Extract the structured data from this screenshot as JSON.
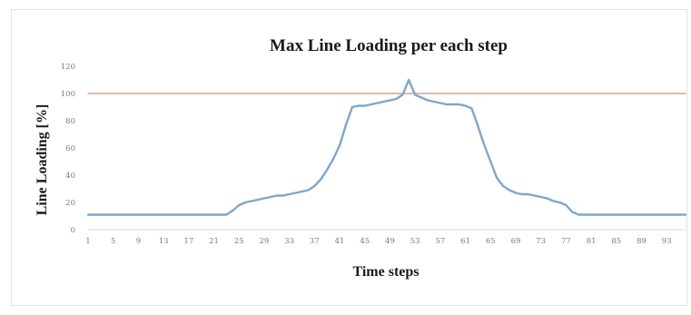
{
  "chart_data": {
    "type": "line",
    "title": "Max Line Loading per each step",
    "xlabel": "Time steps",
    "ylabel": "Line Loading [%]",
    "ylim": [
      0,
      120
    ],
    "yticks": [
      0,
      20,
      40,
      60,
      80,
      100,
      120
    ],
    "xlim": [
      1,
      96
    ],
    "xticks": [
      1,
      5,
      9,
      13,
      17,
      21,
      25,
      29,
      33,
      37,
      41,
      45,
      49,
      53,
      57,
      61,
      65,
      69,
      73,
      77,
      81,
      85,
      89,
      93
    ],
    "grid": false,
    "legend": "none",
    "series": [
      {
        "color": "#7ea6cf",
        "x": [
          1,
          5,
          9,
          13,
          17,
          21,
          23,
          24,
          25,
          26,
          27,
          28,
          29,
          30,
          31,
          32,
          33,
          34,
          35,
          36,
          37,
          38,
          39,
          40,
          41,
          42,
          43,
          44,
          45,
          46,
          47,
          48,
          49,
          50,
          51,
          52,
          53,
          54,
          55,
          56,
          57,
          58,
          59,
          60,
          61,
          62,
          63,
          64,
          65,
          66,
          67,
          68,
          69,
          70,
          71,
          72,
          73,
          74,
          75,
          76,
          77,
          78,
          79,
          80,
          85,
          90,
          96
        ],
        "values": [
          11,
          11,
          11,
          11,
          11,
          11,
          11,
          14,
          18,
          20,
          21,
          22,
          23,
          24,
          25,
          25,
          26,
          27,
          28,
          29,
          32,
          37,
          44,
          52,
          62,
          77,
          90,
          91,
          91,
          92,
          93,
          94,
          95,
          96,
          99,
          110,
          99,
          97,
          95,
          94,
          93,
          92,
          92,
          92,
          91,
          89,
          76,
          62,
          50,
          38,
          32,
          29,
          27,
          26,
          26,
          25,
          24,
          23,
          21,
          20,
          18,
          13,
          11,
          11,
          11,
          11,
          11
        ]
      },
      {
        "color": "#cfa491",
        "x": [
          1,
          96
        ],
        "values": [
          100,
          100
        ]
      }
    ]
  }
}
